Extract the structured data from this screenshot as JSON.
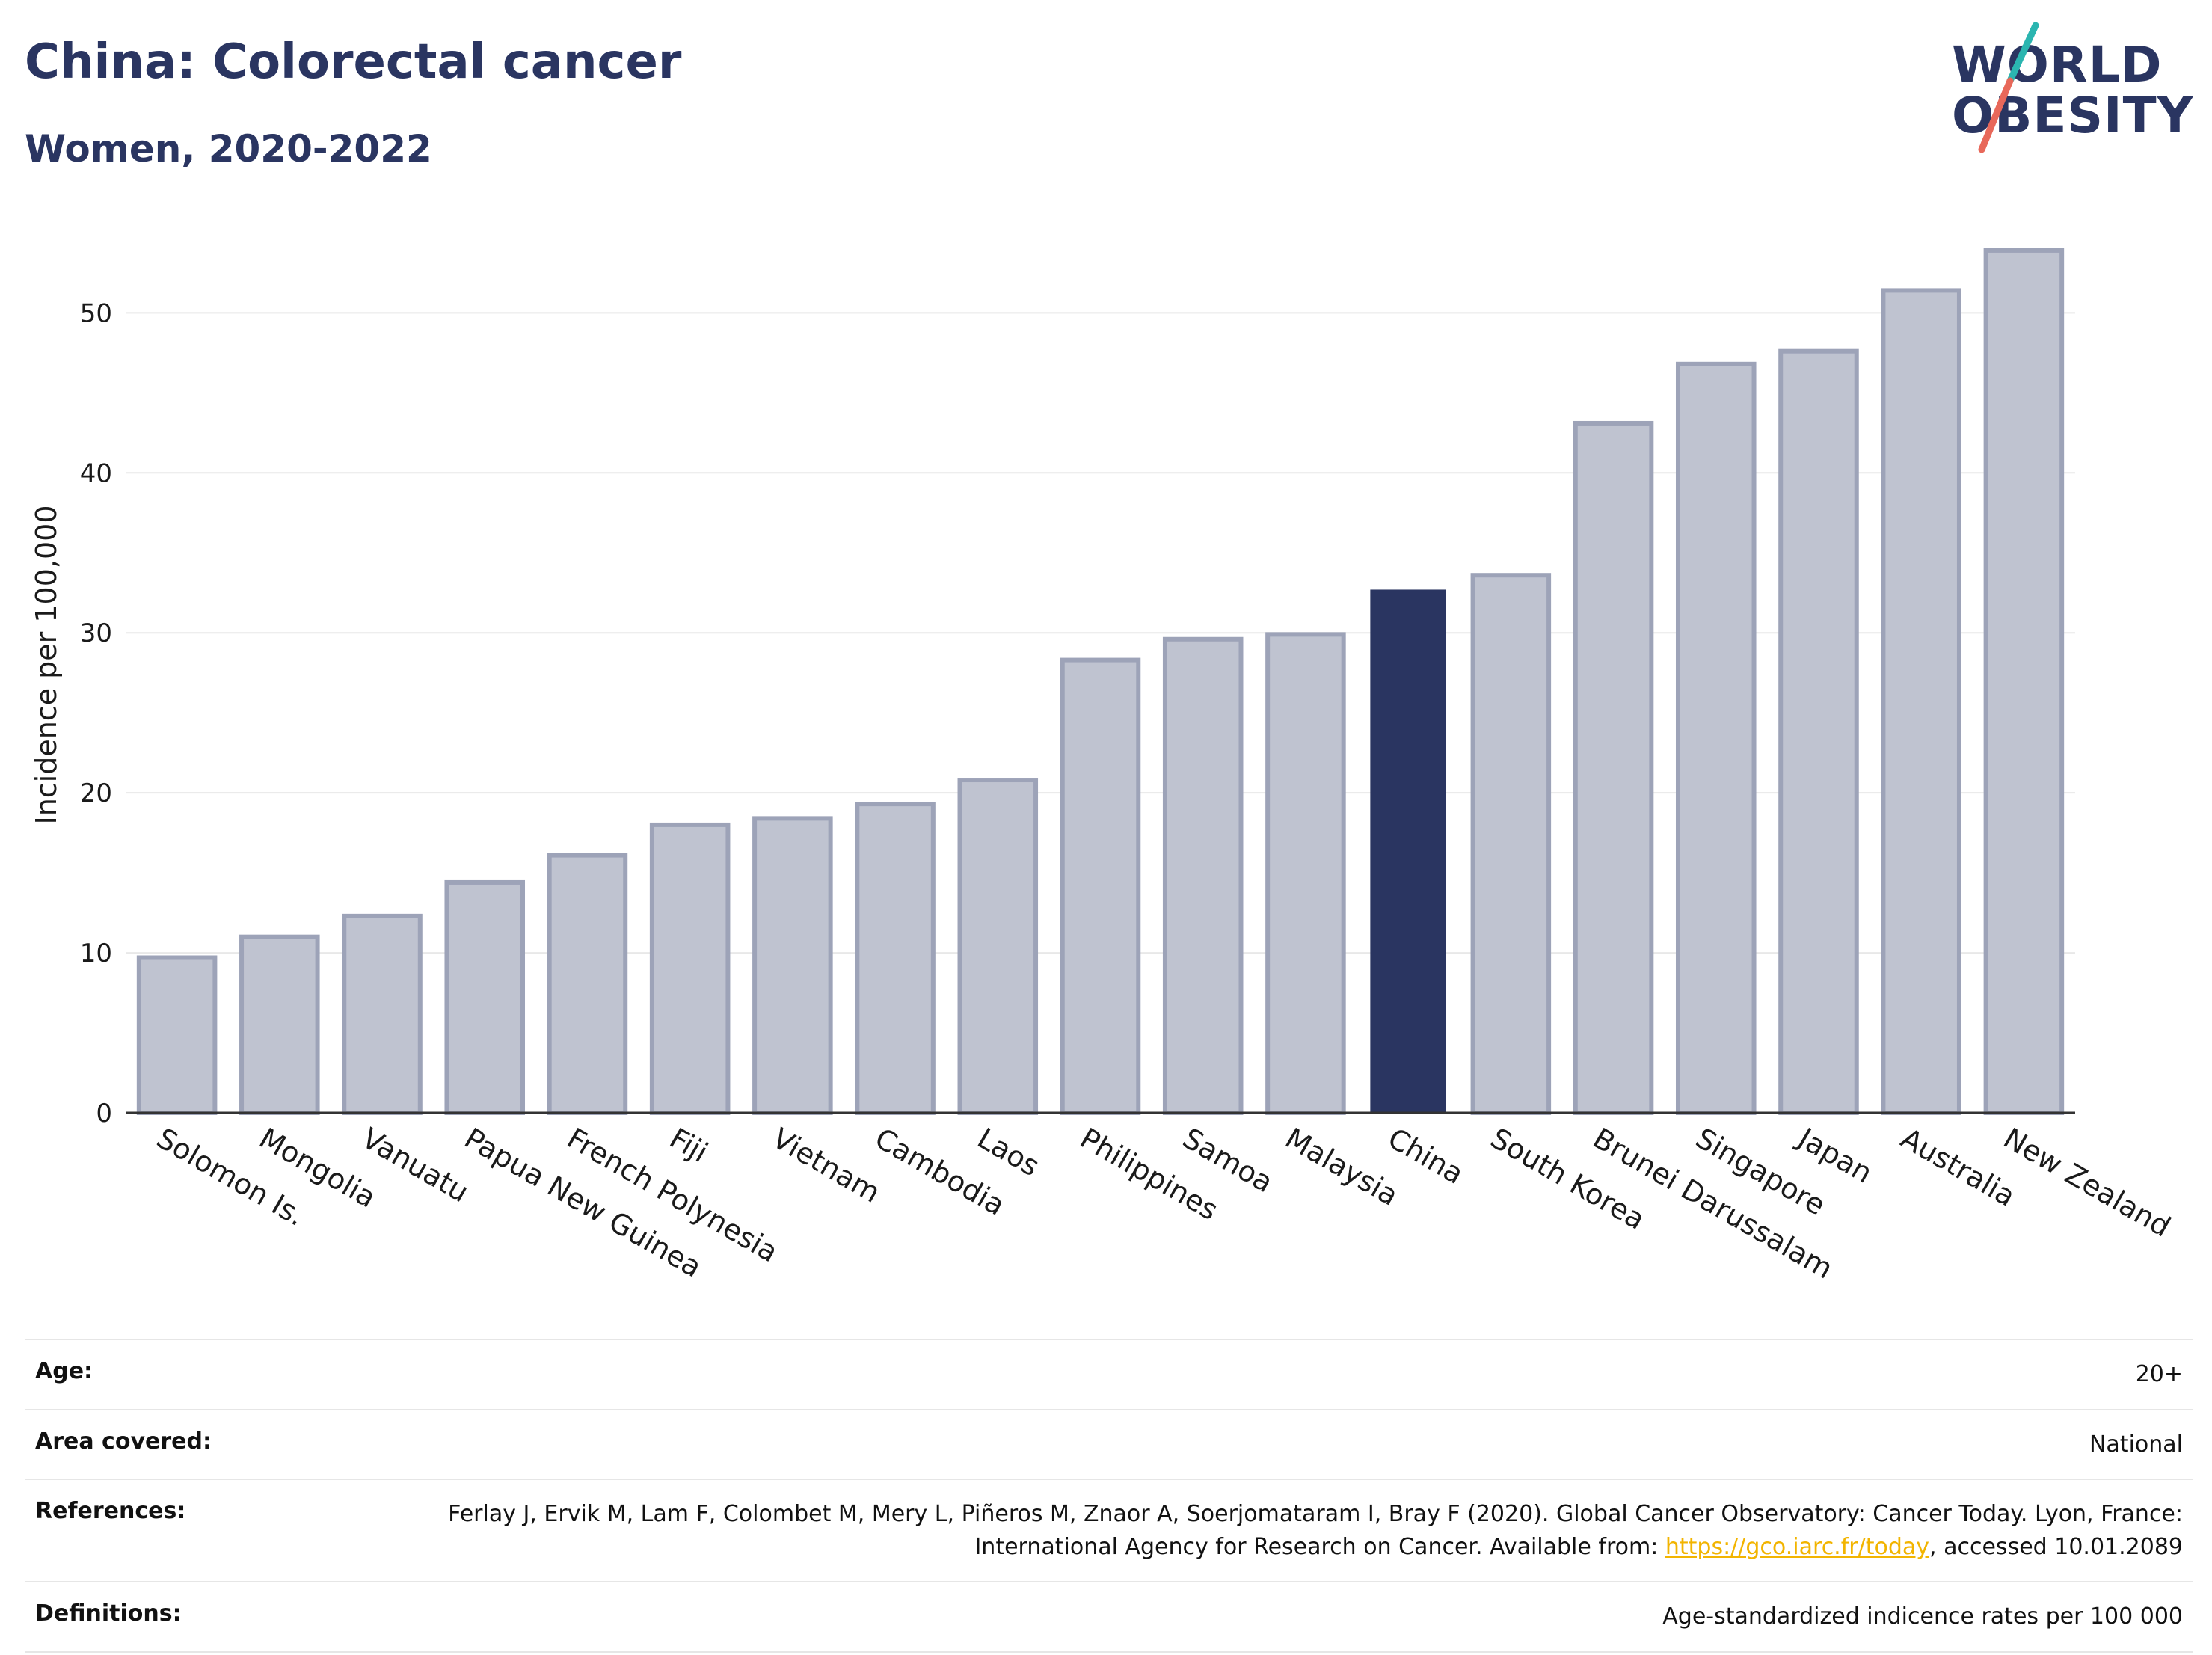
{
  "header": {
    "title": "China: Colorectal cancer",
    "subtitle": "Women, 2020-2022"
  },
  "logo": {
    "line1": "WORLD",
    "line2": "OBESITY"
  },
  "colors": {
    "highlight": "#2a3561",
    "bar": "#bfc3d0",
    "bar_stroke": "#9da3b8",
    "grid": "#e8e8e8",
    "logo_teal": "#2bb5b0",
    "logo_red": "#e8685a"
  },
  "chart_data": {
    "type": "bar",
    "title": "China: Colorectal cancer",
    "subtitle": "Women, 2020-2022",
    "categories": [
      "Solomon Is.",
      "Mongolia",
      "Vanuatu",
      "Papua New Guinea",
      "French Polynesia",
      "Fiji",
      "Vietnam",
      "Cambodia",
      "Laos",
      "Philippines",
      "Samoa",
      "Malaysia",
      "China",
      "South Korea",
      "Brunei Darussalam",
      "Singapore",
      "Japan",
      "Australia",
      "New Zealand"
    ],
    "values": [
      9.7,
      11.0,
      12.3,
      14.4,
      16.1,
      18.0,
      18.4,
      19.3,
      20.8,
      28.3,
      29.6,
      29.9,
      32.7,
      33.6,
      43.1,
      46.8,
      47.6,
      51.4,
      53.9
    ],
    "highlight": "China",
    "xlabel": "",
    "ylabel": "Incidence per 100,000",
    "ylim": [
      0,
      56
    ],
    "yticks": [
      0,
      10,
      20,
      30,
      40,
      50
    ],
    "grid": true,
    "legend": "none"
  },
  "meta": {
    "age_label": "Age:",
    "age_value": "20+",
    "area_label": "Area covered:",
    "area_value": "National",
    "references_label": "References:",
    "references_text_1": "Ferlay J, Ervik M, Lam F, Colombet M, Mery L, Piñeros M, Znaor A, Soerjomataram I, Bray F (2020). Global Cancer Observatory: Cancer Today. Lyon, France: International Agency for Research on Cancer. Available from: ",
    "references_link": "https://gco.iarc.fr/today",
    "references_text_2": ", accessed 10.01.2089",
    "definitions_label": "Definitions:",
    "definitions_value": "Age-standardized indicence rates per 100 000"
  }
}
